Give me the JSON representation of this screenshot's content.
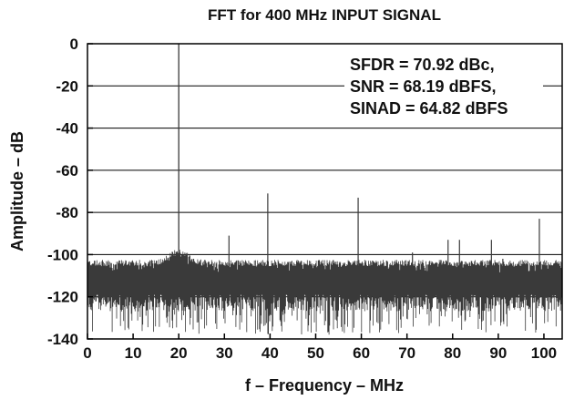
{
  "chart_data": {
    "type": "line",
    "title": "FFT for 400 MHz INPUT SIGNAL",
    "xlabel": "f – Frequency – MHz",
    "ylabel": "Amplitude – dB",
    "xlim": [
      0,
      104
    ],
    "ylim": [
      -140,
      0
    ],
    "x_ticks": [
      0,
      10,
      20,
      30,
      40,
      50,
      60,
      70,
      80,
      90,
      100
    ],
    "x_tick_labels": [
      "0",
      "10",
      "20",
      "30",
      "40",
      "50",
      "60",
      "70",
      "80",
      "90",
      "100"
    ],
    "y_ticks": [
      0,
      -20,
      -40,
      -60,
      -80,
      -100,
      -120,
      -140
    ],
    "y_tick_labels": [
      "0",
      "-20",
      "-40",
      "-60",
      "-80",
      "-100",
      "-120",
      "-140"
    ],
    "grid": true,
    "annotations": [
      "SFDR = 70.92 dBc,",
      "SNR = 68.19 dBFS,",
      "SINAD = 64.82 dBFS"
    ],
    "noise_floor": {
      "x_range": [
        0,
        104
      ],
      "typical_db": -115,
      "upper_db": -104,
      "lower_db": -138
    },
    "series": [
      {
        "values": [
          {
            "x": 20.0,
            "y": 0
          },
          {
            "x": 31.0,
            "y": -91
          },
          {
            "x": 39.5,
            "y": -71
          },
          {
            "x": 59.3,
            "y": -73
          },
          {
            "x": 71.2,
            "y": -99
          },
          {
            "x": 79.0,
            "y": -93
          },
          {
            "x": 81.5,
            "y": -93
          },
          {
            "x": 88.5,
            "y": -93
          },
          {
            "x": 91.0,
            "y": -102
          },
          {
            "x": 99.0,
            "y": -83
          }
        ]
      }
    ],
    "colors": {
      "trace": "#3a3a3a",
      "grid": "#000000",
      "axis": "#000000"
    }
  }
}
